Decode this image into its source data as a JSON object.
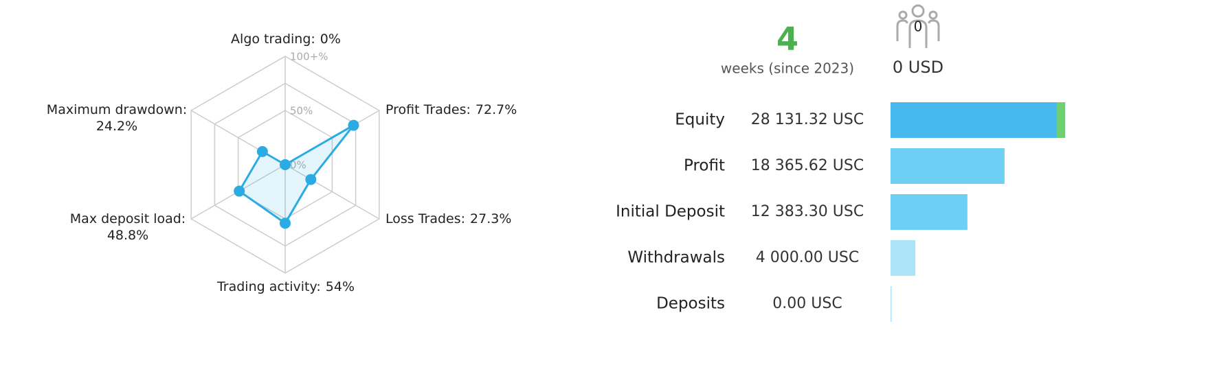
{
  "chart_data": [
    {
      "type": "radar",
      "categories": [
        "Algo trading:",
        "Profit Trades:",
        "Loss Trades:",
        "Trading activity:",
        "Max deposit load:",
        "Maximum drawdown:"
      ],
      "values": [
        0,
        72.7,
        27.3,
        54,
        48.8,
        24.2
      ],
      "value_labels": [
        "0%",
        "72.7%",
        "27.3%",
        "54%",
        "48.8%",
        "24.2%"
      ],
      "color": "#2aabe4",
      "rlim": [
        0,
        100
      ],
      "rticks": [
        {
          "value": 0,
          "label": "0%"
        },
        {
          "value": 50,
          "label": "50%"
        },
        {
          "value": 100,
          "label": "100+%"
        }
      ],
      "rgrid": [
        50,
        75,
        100
      ]
    },
    {
      "type": "hbar",
      "categories": [
        "Equity",
        "Profit",
        "Initial Deposit",
        "Withdrawals",
        "Deposits"
      ],
      "values": [
        28131.32,
        18365.62,
        12383.3,
        4000,
        0
      ],
      "value_labels": [
        "28 131.32 USC",
        "18 365.62 USC",
        "12 383.30 USC",
        "4 000.00 USC",
        "0.00 USC"
      ],
      "colors": [
        "#47b9ec",
        "#6ccff3",
        "#6ccff3",
        "#abe3f7",
        "#abe3f7"
      ],
      "xlim": [
        0,
        30000
      ]
    }
  ],
  "summary": {
    "weeks": 4,
    "weeks_label": "weeks (since 2023)",
    "subscribers": 0,
    "funds": "0 USD"
  }
}
